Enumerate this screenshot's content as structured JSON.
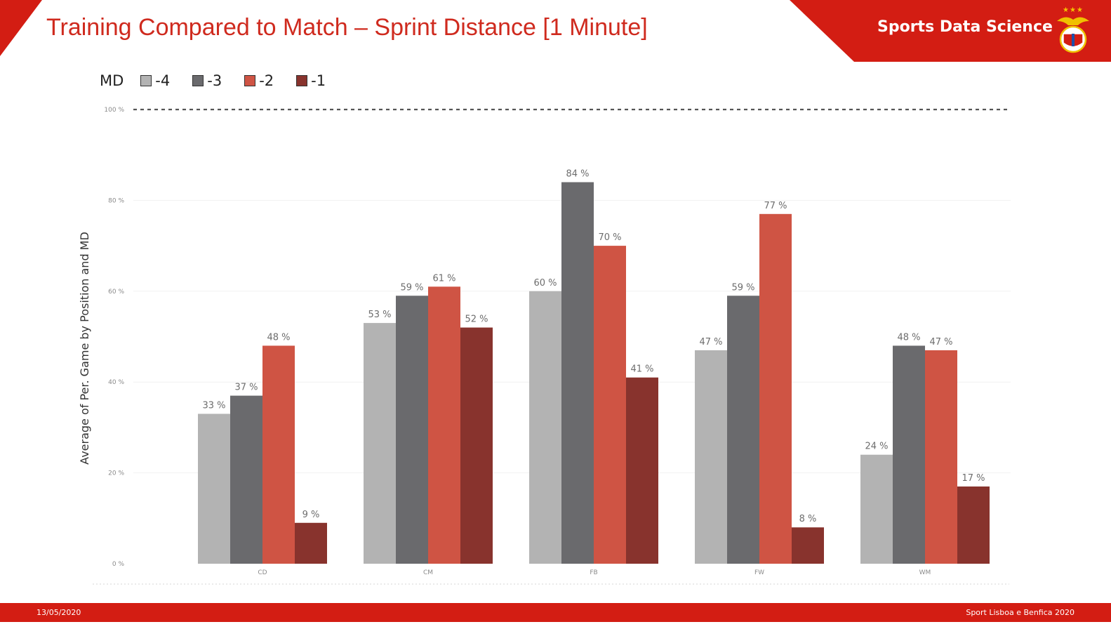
{
  "slide": {
    "title": "Training Compared to Match – Sprint Distance [1 Minute]",
    "brand": "Sports Data Science",
    "brand_icon": "eagle-crest-icon",
    "footer_date": "13/05/2020",
    "footer_org": "Sport Lisboa e Benfica 2020",
    "accent_color": "#d31d13"
  },
  "legend": {
    "title": "MD",
    "items": [
      {
        "label": "-4",
        "color": "#b3b3b3"
      },
      {
        "label": "-3",
        "color": "#6a6a6d"
      },
      {
        "label": "-2",
        "color": "#cf5444"
      },
      {
        "label": "-1",
        "color": "#88332d"
      }
    ]
  },
  "chart_data": {
    "type": "bar",
    "ylabel": "Average of Per. Game by Position and MD",
    "xlabel": "",
    "categories": [
      "CD",
      "CM",
      "FB",
      "FW",
      "WM"
    ],
    "y_ticks": [
      "0 %",
      "20 %",
      "40 %",
      "60 %",
      "80 %",
      "100 %"
    ],
    "ylim": [
      0,
      100
    ],
    "reference_line": 100,
    "series": [
      {
        "name": "-4",
        "values": [
          33,
          53,
          60,
          47,
          24
        ],
        "labels": [
          "33 %",
          "53 %",
          "60 %",
          "47 %",
          "24 %"
        ],
        "color": "#b3b3b3"
      },
      {
        "name": "-3",
        "values": [
          37,
          59,
          84,
          59,
          48
        ],
        "labels": [
          "37 %",
          "59 %",
          "84 %",
          "59 %",
          "48 %"
        ],
        "color": "#6a6a6d"
      },
      {
        "name": "-2",
        "values": [
          48,
          61,
          70,
          77,
          47
        ],
        "labels": [
          "48 %",
          "61 %",
          "70 %",
          "77 %",
          "47 %"
        ],
        "color": "#cf5444"
      },
      {
        "name": "-1",
        "values": [
          9,
          52,
          41,
          8,
          17
        ],
        "labels": [
          "9 %",
          "52 %",
          "41 %",
          "8 %",
          "17 %"
        ],
        "color": "#88332d"
      }
    ]
  }
}
